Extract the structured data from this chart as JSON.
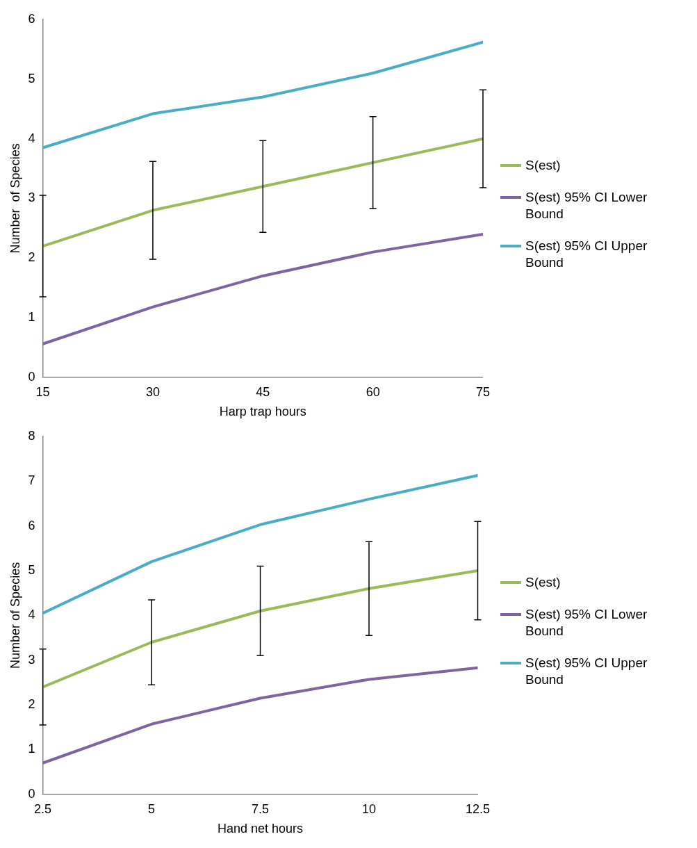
{
  "chart_data": [
    {
      "type": "line",
      "xlabel": "Harp trap hours",
      "ylabel": "Number  of Species",
      "x": [
        15,
        30,
        45,
        60,
        75
      ],
      "xlim": [
        15,
        75
      ],
      "xticks": [
        15,
        30,
        45,
        60,
        75
      ],
      "ylim": [
        0,
        6
      ],
      "yticks": [
        0,
        1,
        2,
        3,
        4,
        5,
        6
      ],
      "grid": false,
      "legend": "right",
      "marker": "none",
      "line_style": "solid",
      "series": [
        {
          "name": "S(est)",
          "color": "#9bbb59",
          "values": [
            2.2,
            2.8,
            3.2,
            3.6,
            4.0
          ],
          "errors": [
            0.85,
            0.82,
            0.77,
            0.77,
            0.82
          ]
        },
        {
          "name": "S(est) 95% CI Lower Bound",
          "color": "#8064a2",
          "values": [
            0.56,
            1.18,
            1.7,
            2.1,
            2.4
          ]
        },
        {
          "name": "S(est) 95% CI Upper Bound",
          "color": "#4bacc6",
          "values": [
            3.85,
            4.42,
            4.7,
            5.1,
            5.62
          ]
        }
      ]
    },
    {
      "type": "line",
      "xlabel": "Hand net hours",
      "ylabel": "Number of Species",
      "x": [
        2.5,
        5,
        7.5,
        10,
        12.5
      ],
      "xlim": [
        2.5,
        12.5
      ],
      "xticks": [
        2.5,
        5,
        7.5,
        10,
        12.5
      ],
      "ylim": [
        0,
        8
      ],
      "yticks": [
        0,
        1,
        2,
        3,
        4,
        5,
        6,
        7,
        8
      ],
      "grid": false,
      "legend": "right",
      "marker": "none",
      "line_style": "solid",
      "series": [
        {
          "name": "S(est)",
          "color": "#9bbb59",
          "values": [
            2.4,
            3.4,
            4.1,
            4.6,
            5.0
          ],
          "errors": [
            0.85,
            0.95,
            1.0,
            1.05,
            1.1
          ]
        },
        {
          "name": "S(est) 95% CI Lower Bound",
          "color": "#8064a2",
          "values": [
            0.7,
            1.57,
            2.15,
            2.57,
            2.83
          ]
        },
        {
          "name": "S(est) 95% CI Upper Bound",
          "color": "#4bacc6",
          "values": [
            4.05,
            5.2,
            6.03,
            6.6,
            7.13
          ]
        }
      ]
    }
  ]
}
